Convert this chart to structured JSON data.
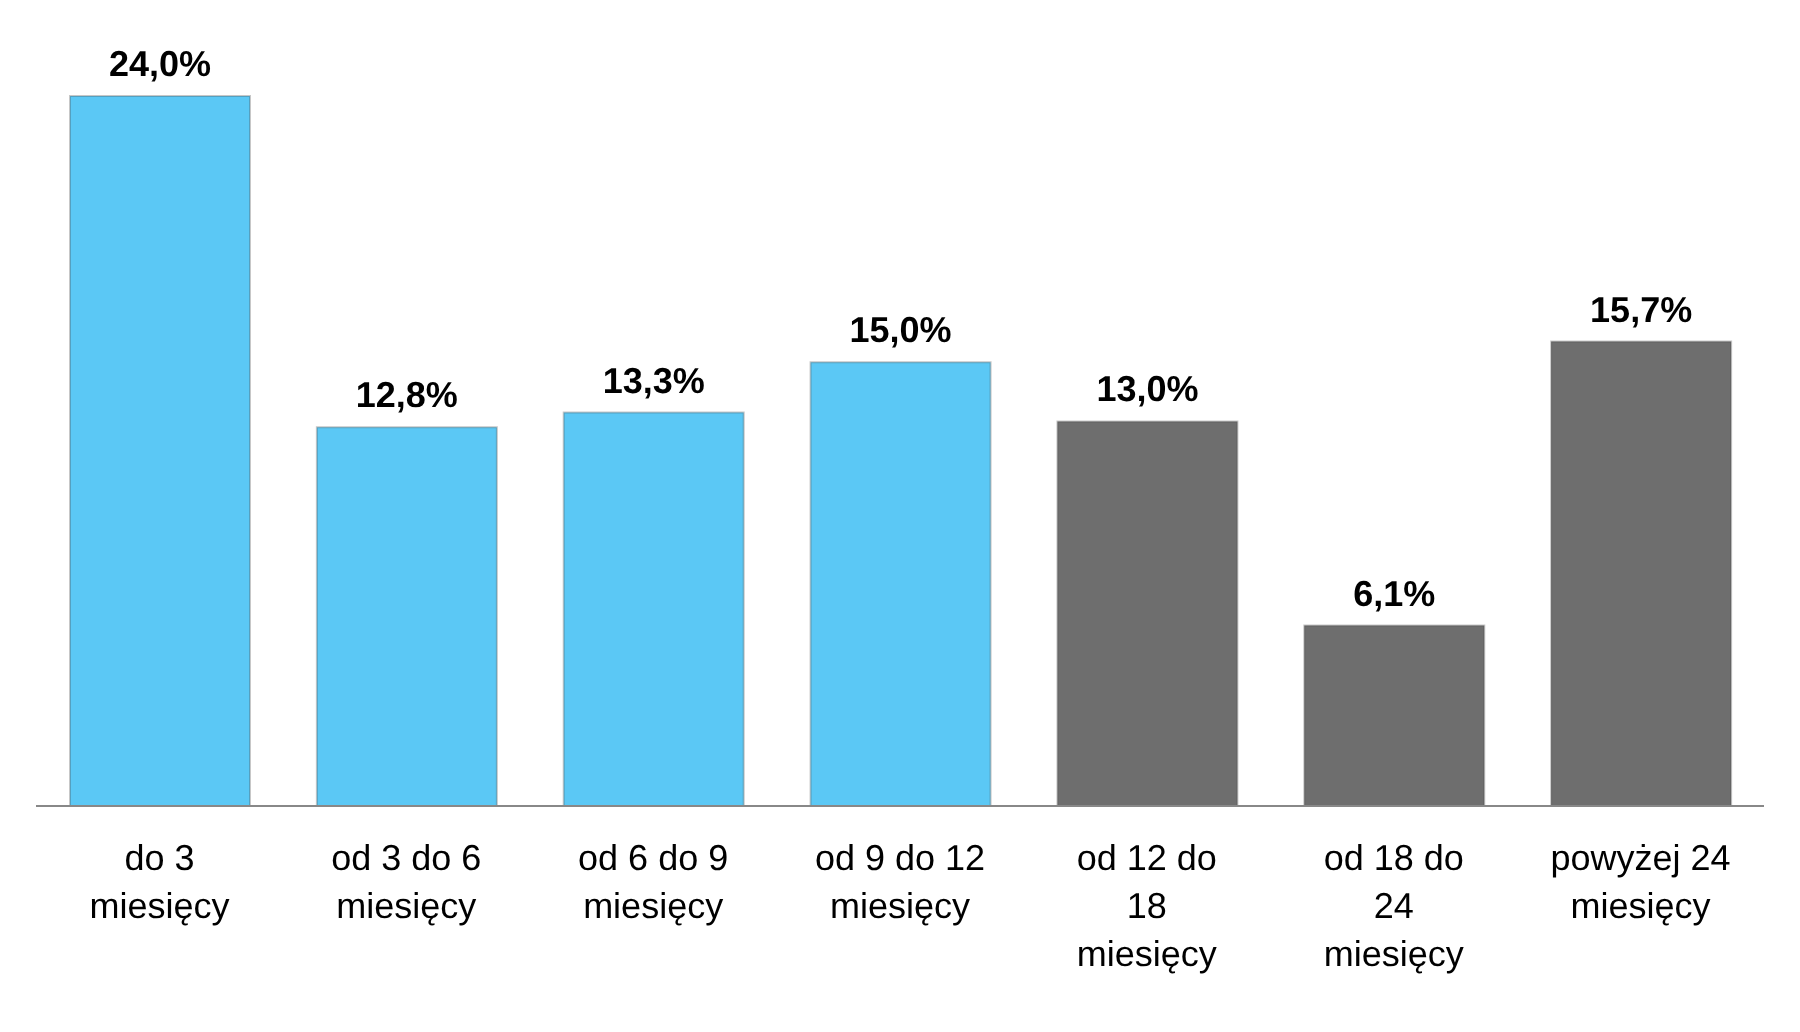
{
  "chart_data": {
    "type": "bar",
    "categories": [
      "do 3 miesięcy",
      "od 3 do 6 miesięcy",
      "od 6 do 9 miesięcy",
      "od 9 do 12 miesięcy",
      "od 12 do 18 miesięcy",
      "od 18 do 24 miesięcy",
      "powyżej 24 miesięcy"
    ],
    "values": [
      24.0,
      12.8,
      13.3,
      15.0,
      13.0,
      6.1,
      15.7
    ],
    "colors": [
      "#5bc8f5",
      "#5bc8f5",
      "#5bc8f5",
      "#5bc8f5",
      "#6e6e6e",
      "#6e6e6e",
      "#6e6e6e"
    ],
    "value_labels": [
      "24,0%",
      "12,8%",
      "13,3%",
      "15,0%",
      "13,0%",
      "6,1%",
      "15,7%"
    ],
    "grid": false,
    "legend": false
  }
}
